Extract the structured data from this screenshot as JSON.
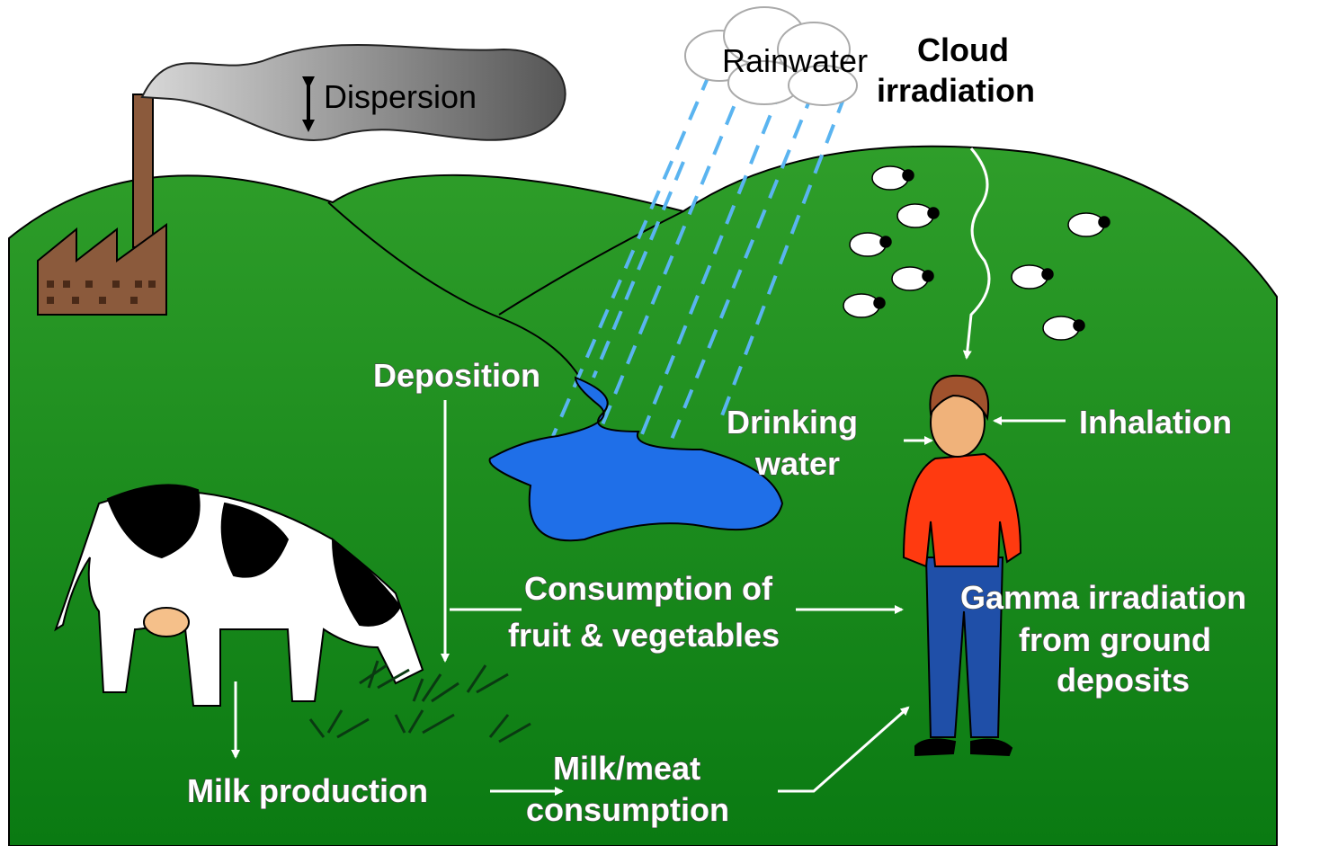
{
  "labels": {
    "dispersion": "Dispersion",
    "rainwater": "Rainwater",
    "cloud_irradiation": [
      "Cloud",
      "irradiation"
    ],
    "deposition": "Deposition",
    "drinking_water": [
      "Drinking",
      "water"
    ],
    "inhalation": "Inhalation",
    "consumption_fruit": [
      "Consumption of",
      "fruit & vegetables"
    ],
    "gamma_irradiation": [
      "Gamma irradiation",
      "from ground",
      "deposits"
    ],
    "milk_production": "Milk production",
    "milk_meat": [
      "Milk/meat",
      "consumption"
    ]
  }
}
